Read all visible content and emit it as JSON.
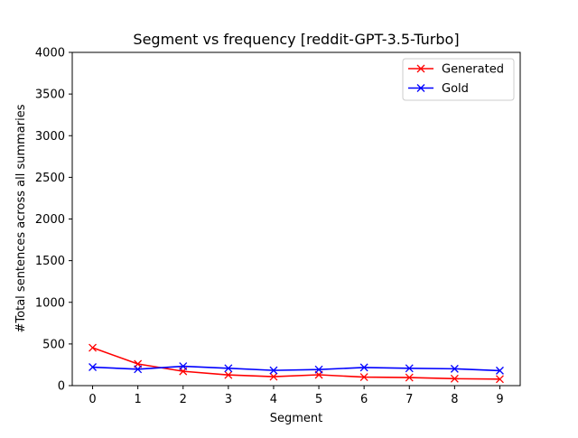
{
  "chart_data": {
    "type": "line",
    "title": "Segment vs frequency [reddit-GPT-3.5-Turbo]",
    "xlabel": "Segment",
    "ylabel": "#Total sentences across all summaries",
    "x": [
      0,
      1,
      2,
      3,
      4,
      5,
      6,
      7,
      8,
      9
    ],
    "xlim": [
      -0.45,
      9.45
    ],
    "ylim": [
      0,
      4000
    ],
    "xticks": [
      0,
      1,
      2,
      3,
      4,
      5,
      6,
      7,
      8,
      9
    ],
    "yticks": [
      0,
      500,
      1000,
      1500,
      2000,
      2500,
      3000,
      3500,
      4000
    ],
    "grid": false,
    "legend_position": "top-right",
    "series": [
      {
        "name": "Generated",
        "color": "#ff0000",
        "marker": "x",
        "values": [
          455,
          260,
          172,
          128,
          108,
          130,
          102,
          97,
          83,
          78
        ]
      },
      {
        "name": "Gold",
        "color": "#0000ff",
        "marker": "x",
        "values": [
          222,
          197,
          232,
          208,
          183,
          193,
          218,
          208,
          202,
          180
        ]
      }
    ]
  }
}
